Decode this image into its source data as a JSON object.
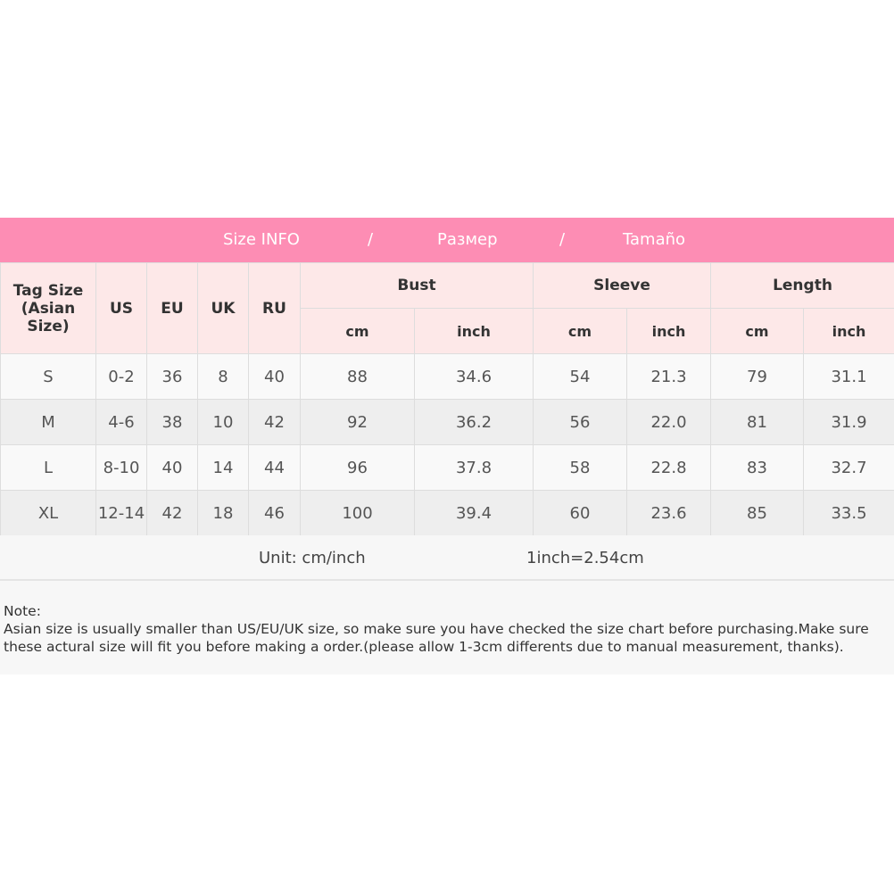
{
  "banner": {
    "title_en": "Size INFO",
    "sep": "/",
    "title_ru": "Размер",
    "title_es": "Tamaño"
  },
  "headers": {
    "tag_size": "Tag Size",
    "tag_size_sub": "(Asian Size)",
    "us": "US",
    "eu": "EU",
    "uk": "UK",
    "ru": "RU",
    "bust": "Bust",
    "sleeve": "Sleeve",
    "length": "Length",
    "cm": "cm",
    "inch": "inch"
  },
  "rows": [
    {
      "tag": "S",
      "us": "0-2",
      "eu": "36",
      "uk": "8",
      "ru": "40",
      "bust_cm": "88",
      "bust_in": "34.6",
      "sleeve_cm": "54",
      "sleeve_in": "21.3",
      "length_cm": "79",
      "length_in": "31.1"
    },
    {
      "tag": "M",
      "us": "4-6",
      "eu": "38",
      "uk": "10",
      "ru": "42",
      "bust_cm": "92",
      "bust_in": "36.2",
      "sleeve_cm": "56",
      "sleeve_in": "22.0",
      "length_cm": "81",
      "length_in": "31.9"
    },
    {
      "tag": "L",
      "us": "8-10",
      "eu": "40",
      "uk": "14",
      "ru": "44",
      "bust_cm": "96",
      "bust_in": "37.8",
      "sleeve_cm": "58",
      "sleeve_in": "22.8",
      "length_cm": "83",
      "length_in": "32.7"
    },
    {
      "tag": "XL",
      "us": "12-14",
      "eu": "42",
      "uk": "18",
      "ru": "46",
      "bust_cm": "100",
      "bust_in": "39.4",
      "sleeve_cm": "60",
      "sleeve_in": "23.6",
      "length_cm": "85",
      "length_in": "33.5"
    }
  ],
  "unit": {
    "label": "Unit: cm/inch",
    "conversion": "1inch=2.54cm"
  },
  "note": {
    "title": "Note:",
    "line1": "Asian size is usually smaller than US/EU/UK size, so make sure you have checked the size chart before purchasing.Make sure",
    "line2": "these actural size will fit you before making a order.(please allow 1-3cm differents due to manual measurement, thanks)."
  }
}
